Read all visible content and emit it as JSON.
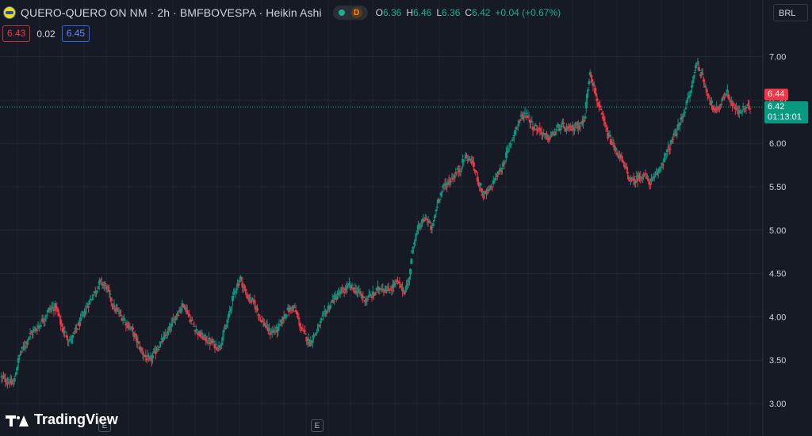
{
  "header": {
    "symbol_title": "QUERO-QUERO ON NM · 2h · BMFBOVESPA · Heikin Ashi",
    "delay_badge": "D",
    "ohlc": {
      "o_label": "O",
      "o_value": "6.36",
      "h_label": "H",
      "h_value": "6.46",
      "l_label": "L",
      "l_value": "6.36",
      "c_label": "C",
      "c_value": "6.42",
      "change": "+0.04 (+0.67%)"
    }
  },
  "quote": {
    "bid": "6.43",
    "spread": "0.02",
    "ask": "6.45"
  },
  "currency": "BRL",
  "branding": "TradingView",
  "events": [
    "E",
    "E"
  ],
  "price_tags": {
    "ask_price": "6.44",
    "last_price": "6.42",
    "countdown": "01:13:01"
  },
  "colors": {
    "background": "#161a25",
    "grid": "#232733",
    "up": "#089981",
    "down": "#f23645",
    "axis_text": "#d1d4dc",
    "price_line": "#22ab94"
  },
  "chart_data": {
    "type": "candlestick",
    "style": "Heikin Ashi",
    "interval": "2h",
    "ylim": [
      2.8,
      7.35
    ],
    "y_ticks": [
      "3.00",
      "3.50",
      "4.00",
      "4.50",
      "5.00",
      "5.50",
      "6.00",
      "6.50",
      "7.00"
    ],
    "current_price": 6.42,
    "grid": true,
    "close_path": [
      [
        0,
        3.3
      ],
      [
        12,
        3.22
      ],
      [
        18,
        3.55
      ],
      [
        28,
        3.78
      ],
      [
        38,
        3.9
      ],
      [
        48,
        4.08
      ],
      [
        55,
        4.12
      ],
      [
        62,
        3.85
      ],
      [
        70,
        3.72
      ],
      [
        80,
        3.95
      ],
      [
        90,
        4.2
      ],
      [
        100,
        4.4
      ],
      [
        106,
        4.35
      ],
      [
        114,
        4.1
      ],
      [
        122,
        4.0
      ],
      [
        132,
        3.85
      ],
      [
        142,
        3.6
      ],
      [
        150,
        3.48
      ],
      [
        158,
        3.65
      ],
      [
        168,
        3.8
      ],
      [
        178,
        4.05
      ],
      [
        185,
        4.15
      ],
      [
        192,
        3.95
      ],
      [
        200,
        3.8
      ],
      [
        210,
        3.72
      ],
      [
        220,
        3.65
      ],
      [
        228,
        3.9
      ],
      [
        236,
        4.3
      ],
      [
        242,
        4.45
      ],
      [
        248,
        4.25
      ],
      [
        256,
        4.15
      ],
      [
        264,
        3.95
      ],
      [
        272,
        3.82
      ],
      [
        280,
        3.85
      ],
      [
        288,
        4.05
      ],
      [
        296,
        4.12
      ],
      [
        304,
        3.85
      ],
      [
        312,
        3.7
      ],
      [
        320,
        3.85
      ],
      [
        328,
        4.05
      ],
      [
        336,
        4.2
      ],
      [
        344,
        4.28
      ],
      [
        352,
        4.35
      ],
      [
        360,
        4.3
      ],
      [
        368,
        4.2
      ],
      [
        376,
        4.25
      ],
      [
        384,
        4.35
      ],
      [
        392,
        4.3
      ],
      [
        400,
        4.4
      ],
      [
        408,
        4.3
      ],
      [
        412,
        4.4
      ],
      [
        418,
        4.9
      ],
      [
        424,
        5.05
      ],
      [
        430,
        5.15
      ],
      [
        436,
        5.0
      ],
      [
        442,
        5.35
      ],
      [
        448,
        5.5
      ],
      [
        456,
        5.6
      ],
      [
        464,
        5.7
      ],
      [
        470,
        5.85
      ],
      [
        476,
        5.8
      ],
      [
        482,
        5.6
      ],
      [
        488,
        5.4
      ],
      [
        494,
        5.45
      ],
      [
        500,
        5.6
      ],
      [
        506,
        5.7
      ],
      [
        514,
        5.95
      ],
      [
        520,
        6.15
      ],
      [
        526,
        6.3
      ],
      [
        532,
        6.35
      ],
      [
        538,
        6.2
      ],
      [
        546,
        6.15
      ],
      [
        552,
        6.05
      ],
      [
        558,
        6.1
      ],
      [
        566,
        6.2
      ],
      [
        574,
        6.15
      ],
      [
        582,
        6.2
      ],
      [
        590,
        6.25
      ],
      [
        596,
        6.85
      ],
      [
        602,
        6.55
      ],
      [
        608,
        6.3
      ],
      [
        614,
        6.1
      ],
      [
        620,
        5.95
      ],
      [
        626,
        5.85
      ],
      [
        632,
        5.7
      ],
      [
        638,
        5.55
      ],
      [
        644,
        5.6
      ],
      [
        650,
        5.65
      ],
      [
        656,
        5.55
      ],
      [
        662,
        5.6
      ],
      [
        668,
        5.75
      ],
      [
        674,
        5.9
      ],
      [
        680,
        6.05
      ],
      [
        686,
        6.2
      ],
      [
        692,
        6.4
      ],
      [
        698,
        6.6
      ],
      [
        704,
        6.95
      ],
      [
        710,
        6.75
      ],
      [
        716,
        6.55
      ],
      [
        722,
        6.35
      ],
      [
        728,
        6.45
      ],
      [
        734,
        6.6
      ],
      [
        740,
        6.45
      ],
      [
        746,
        6.35
      ],
      [
        752,
        6.4
      ],
      [
        758,
        6.42
      ]
    ]
  }
}
